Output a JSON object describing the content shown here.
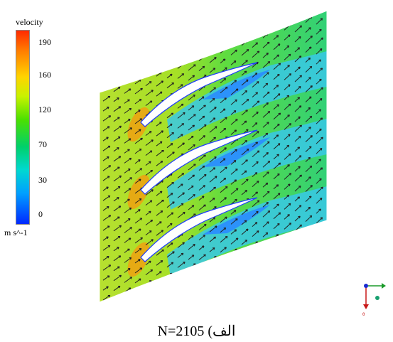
{
  "legend": {
    "title": "velocity",
    "unit": "m s^-1",
    "ticks": [
      "190",
      "160",
      "120",
      "70",
      "30",
      "0"
    ]
  },
  "caption": "الف) N=2105",
  "colors": {
    "background": "#9fe22a",
    "high": "#ff6a00",
    "mid": "#5fdc20",
    "low": "#2a9cff",
    "blade": "#ffffff",
    "vector": "#222222"
  },
  "icons": {
    "axis_triad": "xyz-axis-triad-icon"
  }
}
